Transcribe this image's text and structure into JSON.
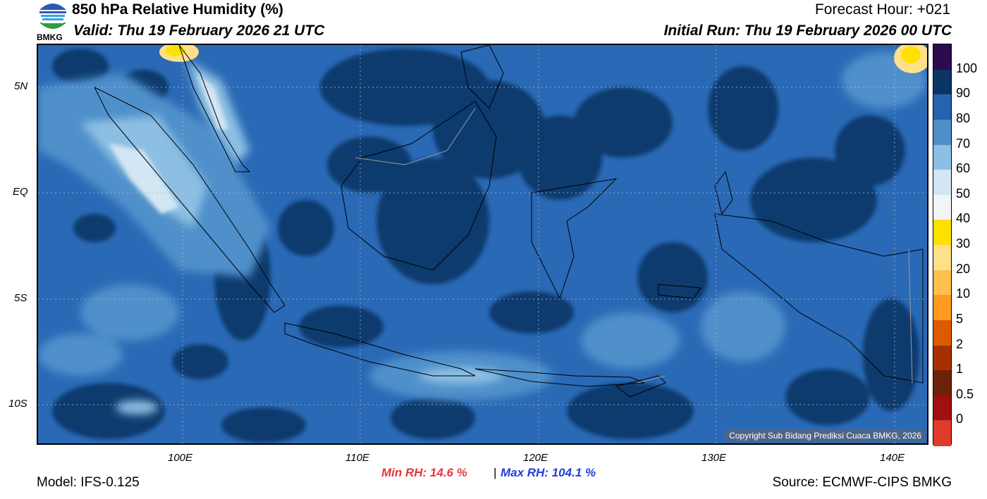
{
  "header": {
    "title": "850 hPa Relative Humidity (%)",
    "valid": "Valid: Thu 19 February 2026 21 UTC",
    "forecast_hour": "Forecast Hour: +021",
    "initial_run": "Initial Run: Thu 19 February 2026 00 UTC"
  },
  "logo": {
    "text": "BMKG",
    "icon": "bmkg-logo-icon"
  },
  "map": {
    "lat_labels": [
      "5N",
      "EQ",
      "5S",
      "10S"
    ],
    "lon_labels": [
      "100E",
      "110E",
      "120E",
      "130E",
      "140E"
    ],
    "copyright": "Copyright Sub Bidang Prediksi Cuaca BMKG, 2026"
  },
  "legend": {
    "labels": [
      "100",
      "90",
      "80",
      "70",
      "60",
      "50",
      "40",
      "30",
      "20",
      "10",
      "5",
      "2",
      "1",
      "0.5",
      "0"
    ],
    "colors": [
      "#2d0a4e",
      "#0b3466",
      "#2563ae",
      "#4e8fca",
      "#8cbfe3",
      "#d2e6f3",
      "#f4f4f4",
      "#ffe000",
      "#ffe08a",
      "#ffc04d",
      "#ff9a1f",
      "#dd5b00",
      "#a83000",
      "#6e2208",
      "#a01010",
      "#e03a2a"
    ]
  },
  "footer": {
    "model": "Model: IFS-0.125",
    "min_rh": "Min RH:  14.6 %",
    "separator": "|",
    "max_rh": "Max RH: 104.1 %",
    "source": "Source: ECMWF-CIPS BMKG"
  },
  "colors": {
    "min_rh": "#e8373a",
    "max_rh": "#1f3fd8"
  }
}
